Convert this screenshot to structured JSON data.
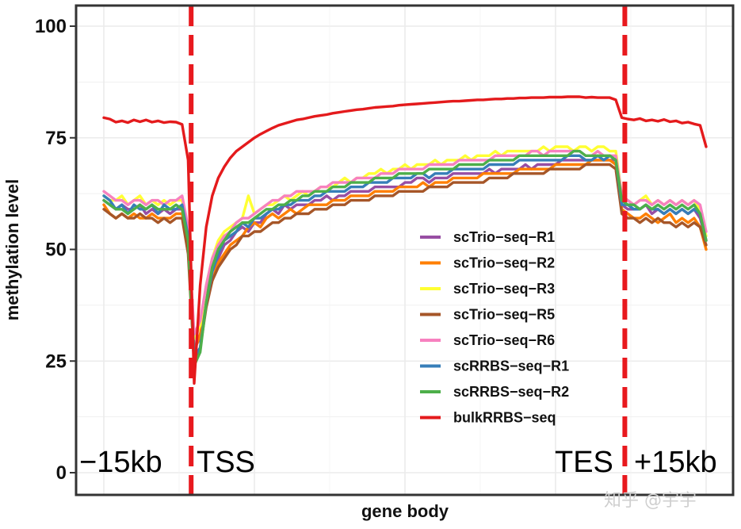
{
  "watermark": "知乎 @宇宇",
  "chart_data": {
    "type": "line",
    "title": "",
    "xlabel": "gene body",
    "ylabel": "methylation level",
    "ylim": [
      0,
      100
    ],
    "xlim": [
      0,
      100
    ],
    "yticks": [
      "0",
      "25",
      "50",
      "75",
      "100"
    ],
    "grid": true,
    "legend_position": "center-right",
    "region_labels": [
      "−15kb",
      "TSS",
      "TES",
      "+15kb"
    ],
    "markers": [
      {
        "name": "TSS",
        "x": 14.5,
        "color": "#e8191e",
        "style": "dashed"
      },
      {
        "name": "TES",
        "x": 86.5,
        "color": "#e8191e",
        "style": "dashed"
      }
    ],
    "x": [
      0,
      1,
      2,
      3,
      4,
      5,
      6,
      7,
      8,
      9,
      10,
      11,
      12,
      13,
      14,
      15,
      16,
      17,
      18,
      19,
      20,
      21,
      22,
      23,
      24,
      25,
      26,
      27,
      28,
      29,
      30,
      31,
      32,
      33,
      34,
      35,
      36,
      37,
      38,
      39,
      40,
      41,
      42,
      43,
      44,
      45,
      46,
      47,
      48,
      49,
      50,
      51,
      52,
      53,
      54,
      55,
      56,
      57,
      58,
      59,
      60,
      61,
      62,
      63,
      64,
      65,
      66,
      67,
      68,
      69,
      70,
      71,
      72,
      73,
      74,
      75,
      76,
      77,
      78,
      79,
      80,
      81,
      82,
      83,
      84,
      85,
      86,
      87,
      88,
      89,
      90,
      91,
      92,
      93,
      94,
      95,
      96,
      97,
      98,
      99,
      100
    ],
    "series": [
      {
        "name": "scTrio−seq−R1",
        "color": "#984ea3",
        "values": [
          61,
          60,
          59,
          60,
          59,
          59,
          60,
          58,
          59,
          58,
          59,
          58,
          59,
          59,
          52,
          28,
          30,
          40,
          45,
          48,
          51,
          52,
          54,
          55,
          54,
          56,
          56,
          58,
          59,
          58,
          60,
          59,
          60,
          60,
          60,
          61,
          61,
          62,
          61,
          62,
          62,
          63,
          63,
          63,
          63,
          64,
          64,
          64,
          64,
          64,
          65,
          65,
          66,
          66,
          65,
          66,
          66,
          66,
          67,
          67,
          67,
          67,
          67,
          67,
          68,
          67,
          68,
          68,
          68,
          68,
          69,
          68,
          69,
          69,
          69,
          69,
          70,
          70,
          70,
          70,
          70,
          70,
          70,
          70,
          70,
          70,
          60,
          59,
          59,
          59,
          60,
          58,
          59,
          58,
          59,
          58,
          59,
          58,
          59,
          57,
          52
        ]
      },
      {
        "name": "scTrio−seq−R2",
        "color": "#ff7f00",
        "values": [
          60,
          58,
          57,
          58,
          57,
          58,
          57,
          57,
          58,
          57,
          57,
          57,
          58,
          58,
          50,
          27,
          31,
          38,
          43,
          47,
          49,
          51,
          52,
          53,
          55,
          56,
          55,
          57,
          58,
          57,
          58,
          59,
          58,
          59,
          60,
          60,
          60,
          60,
          61,
          61,
          61,
          62,
          62,
          62,
          62,
          63,
          63,
          63,
          63,
          64,
          64,
          64,
          64,
          65,
          64,
          65,
          65,
          65,
          66,
          66,
          66,
          66,
          66,
          67,
          67,
          67,
          67,
          67,
          67,
          68,
          68,
          68,
          68,
          68,
          68,
          69,
          69,
          69,
          69,
          69,
          69,
          70,
          70,
          70,
          70,
          69,
          59,
          58,
          57,
          57,
          58,
          57,
          56,
          57,
          58,
          56,
          57,
          56,
          57,
          55,
          50
        ]
      },
      {
        "name": "scTrio−seq−R3",
        "color": "#ffff33",
        "values": [
          62,
          61,
          61,
          62,
          60,
          61,
          62,
          60,
          61,
          60,
          61,
          60,
          61,
          61,
          54,
          30,
          33,
          42,
          48,
          52,
          54,
          55,
          56,
          57,
          62,
          58,
          59,
          60,
          60,
          61,
          62,
          61,
          62,
          63,
          62,
          63,
          64,
          64,
          64,
          65,
          66,
          65,
          66,
          66,
          67,
          67,
          68,
          67,
          68,
          68,
          69,
          68,
          69,
          69,
          69,
          70,
          69,
          70,
          70,
          70,
          71,
          70,
          71,
          71,
          71,
          72,
          71,
          72,
          72,
          72,
          72,
          72,
          72,
          73,
          72,
          73,
          73,
          73,
          72,
          73,
          73,
          72,
          73,
          73,
          72,
          72,
          62,
          61,
          60,
          61,
          62,
          60,
          61,
          60,
          61,
          60,
          61,
          60,
          61,
          59,
          53
        ]
      },
      {
        "name": "scTrio−seq−R5",
        "color": "#a65628",
        "values": [
          59,
          58,
          57,
          58,
          57,
          57,
          58,
          57,
          57,
          56,
          57,
          56,
          57,
          57,
          49,
          25,
          28,
          37,
          43,
          46,
          48,
          50,
          51,
          53,
          53,
          54,
          54,
          55,
          56,
          56,
          57,
          57,
          58,
          58,
          58,
          59,
          59,
          59,
          60,
          60,
          60,
          61,
          61,
          61,
          61,
          62,
          62,
          62,
          62,
          63,
          63,
          63,
          63,
          63,
          64,
          64,
          64,
          64,
          65,
          65,
          65,
          65,
          65,
          65,
          66,
          66,
          66,
          66,
          67,
          67,
          67,
          67,
          67,
          67,
          68,
          68,
          68,
          68,
          68,
          68,
          69,
          69,
          69,
          69,
          69,
          68,
          58,
          57,
          57,
          56,
          57,
          56,
          57,
          56,
          56,
          55,
          56,
          55,
          56,
          55,
          51
        ]
      },
      {
        "name": "scTrio−seq−R6",
        "color": "#f781bf",
        "values": [
          63,
          62,
          61,
          61,
          60,
          61,
          61,
          60,
          61,
          61,
          60,
          61,
          61,
          62,
          55,
          31,
          34,
          42,
          48,
          51,
          53,
          54,
          56,
          57,
          57,
          58,
          59,
          60,
          61,
          61,
          62,
          62,
          63,
          63,
          63,
          63,
          64,
          64,
          65,
          65,
          65,
          65,
          66,
          66,
          66,
          66,
          67,
          67,
          67,
          68,
          68,
          68,
          68,
          68,
          69,
          69,
          69,
          69,
          69,
          70,
          70,
          70,
          70,
          70,
          70,
          71,
          71,
          71,
          71,
          71,
          71,
          72,
          72,
          71,
          72,
          72,
          72,
          72,
          72,
          72,
          71,
          71,
          72,
          71,
          71,
          71,
          62,
          61,
          60,
          61,
          61,
          60,
          61,
          60,
          61,
          60,
          61,
          60,
          61,
          60,
          54
        ]
      },
      {
        "name": "scRRBS−seq−R1",
        "color": "#377eb8",
        "values": [
          62,
          61,
          59,
          60,
          58,
          60,
          59,
          59,
          60,
          58,
          60,
          59,
          59,
          60,
          53,
          26,
          28,
          38,
          45,
          49,
          52,
          53,
          54,
          56,
          55,
          57,
          57,
          58,
          59,
          59,
          60,
          60,
          61,
          61,
          61,
          62,
          62,
          63,
          63,
          63,
          63,
          64,
          64,
          64,
          65,
          65,
          65,
          65,
          66,
          66,
          66,
          66,
          67,
          67,
          66,
          67,
          67,
          67,
          68,
          68,
          68,
          68,
          68,
          68,
          69,
          69,
          69,
          69,
          69,
          70,
          70,
          70,
          70,
          70,
          70,
          70,
          70,
          71,
          71,
          71,
          70,
          70,
          71,
          70,
          71,
          70,
          60,
          60,
          59,
          59,
          60,
          59,
          59,
          58,
          59,
          58,
          59,
          58,
          59,
          58,
          52
        ]
      },
      {
        "name": "scRRBS−seq−R2",
        "color": "#4daf4a",
        "values": [
          61,
          60,
          59,
          59,
          58,
          59,
          60,
          59,
          60,
          59,
          59,
          59,
          60,
          59,
          52,
          24,
          27,
          38,
          46,
          50,
          52,
          54,
          55,
          56,
          56,
          57,
          58,
          59,
          59,
          60,
          60,
          61,
          61,
          62,
          62,
          63,
          63,
          63,
          64,
          64,
          64,
          65,
          65,
          65,
          65,
          66,
          66,
          66,
          66,
          67,
          67,
          67,
          67,
          67,
          68,
          68,
          68,
          68,
          68,
          69,
          69,
          69,
          69,
          69,
          70,
          70,
          70,
          70,
          70,
          71,
          71,
          71,
          71,
          71,
          71,
          71,
          71,
          71,
          72,
          72,
          71,
          71,
          71,
          71,
          71,
          70,
          61,
          60,
          60,
          59,
          60,
          59,
          60,
          59,
          60,
          59,
          60,
          59,
          60,
          58,
          52
        ]
      },
      {
        "name": "bulkRRBS−seq",
        "color": "#e41a1c",
        "values": [
          79.5,
          79.2,
          78.5,
          78.8,
          78.4,
          79,
          78.6,
          79,
          78.5,
          78.8,
          78.4,
          78.6,
          78.5,
          78,
          70,
          20,
          42,
          55,
          62,
          66,
          68.5,
          70.5,
          72,
          73,
          74,
          75,
          75.8,
          76.5,
          77.2,
          77.8,
          78.2,
          78.6,
          79,
          79.2,
          79.5,
          79.8,
          80,
          80.2,
          80.5,
          80.7,
          80.9,
          81.1,
          81.3,
          81.4,
          81.6,
          81.8,
          81.9,
          82,
          82.1,
          82.3,
          82.4,
          82.5,
          82.6,
          82.7,
          82.8,
          82.9,
          83,
          83.1,
          83.2,
          83.2,
          83.3,
          83.4,
          83.5,
          83.5,
          83.6,
          83.7,
          83.7,
          83.8,
          83.8,
          83.9,
          83.9,
          84,
          84,
          84,
          84.1,
          84.1,
          84.1,
          84.2,
          84.2,
          84.2,
          84,
          84.1,
          84,
          84,
          84,
          83.5,
          79.5,
          79.2,
          79,
          79.3,
          78.8,
          79,
          78.7,
          79.1,
          78.6,
          78.8,
          78.3,
          78.5,
          78.1,
          77.8,
          73
        ]
      }
    ]
  }
}
